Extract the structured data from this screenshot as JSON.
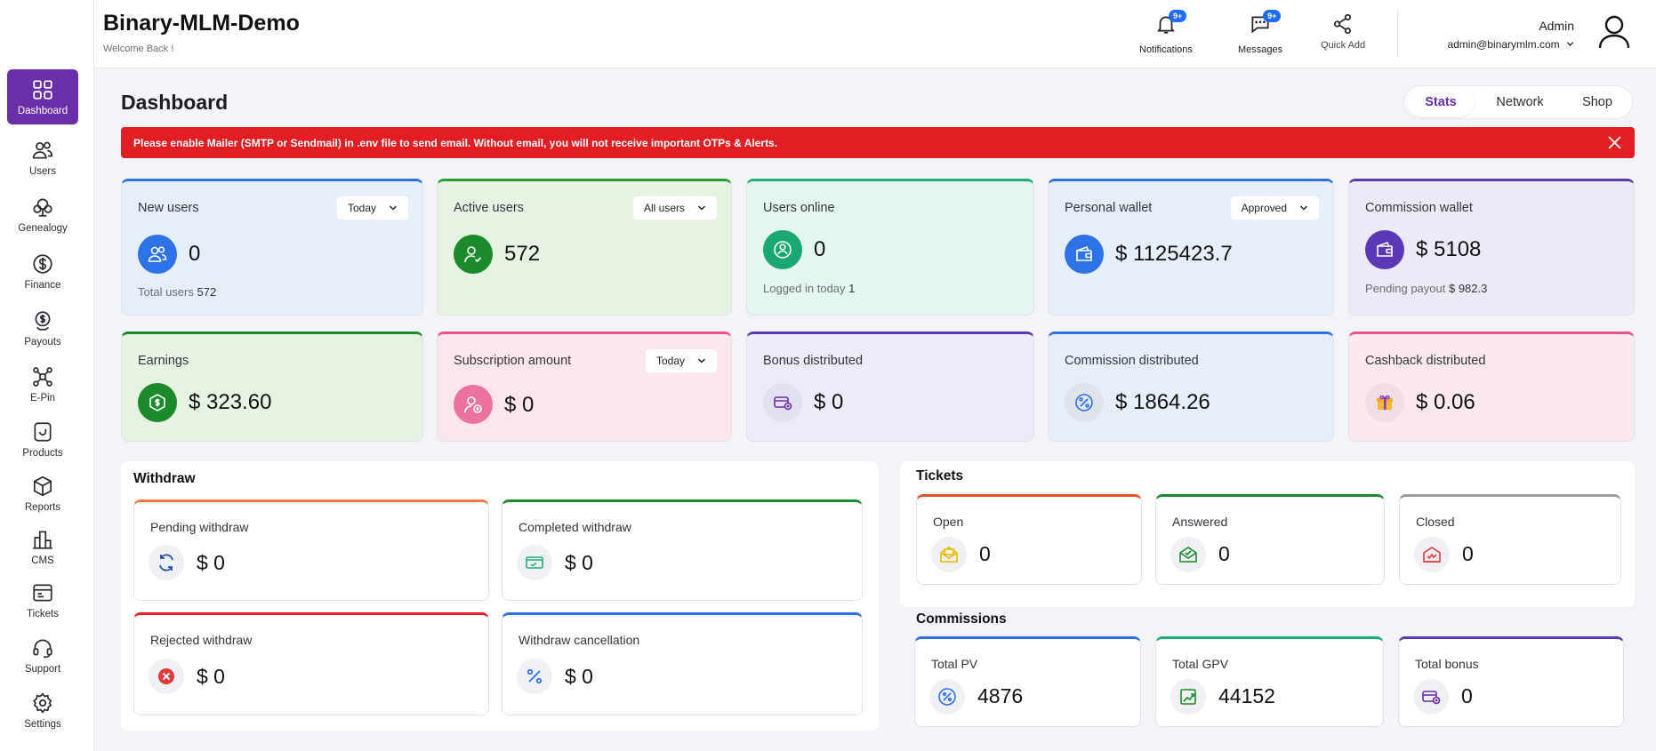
{
  "app": {
    "title": "Binary-MLM-Demo",
    "welcome": "Welcome Back !"
  },
  "sidebar": {
    "items": [
      {
        "label": "Dashboard",
        "icon": "dashboard-icon",
        "active": true
      },
      {
        "label": "Users",
        "icon": "users-icon"
      },
      {
        "label": "Genealogy",
        "icon": "genealogy-icon"
      },
      {
        "label": "Finance",
        "icon": "finance-icon"
      },
      {
        "label": "Payouts",
        "icon": "payouts-icon"
      },
      {
        "label": "E-Pin",
        "icon": "epin-icon"
      },
      {
        "label": "Products",
        "icon": "products-icon"
      },
      {
        "label": "Reports",
        "icon": "reports-icon"
      },
      {
        "label": "CMS",
        "icon": "cms-icon"
      },
      {
        "label": "Tickets",
        "icon": "tickets-icon"
      },
      {
        "label": "Support",
        "icon": "support-icon"
      },
      {
        "label": "Settings",
        "icon": "settings-icon"
      }
    ]
  },
  "header": {
    "notifications": {
      "label": "Notifications",
      "badge": "9+"
    },
    "messages": {
      "label": "Messages",
      "badge": "9+"
    },
    "quick_add": {
      "label": "Quick Add"
    },
    "admin_name": "Admin",
    "admin_email": "admin@binarymlm.com"
  },
  "page": {
    "title": "Dashboard",
    "tabs": [
      "Stats",
      "Network",
      "Shop"
    ],
    "active_tab": "Stats"
  },
  "alert": "Please enable Mailer (SMTP or Sendmail) in .env file to send email. Without email, you will not receive important OTPs & Alerts.",
  "stats": {
    "new_users": {
      "title": "New users",
      "filter": "Today",
      "value": "0",
      "sub_label": "Total users",
      "sub_value": "572"
    },
    "active_users": {
      "title": "Active users",
      "filter": "All users",
      "value": "572"
    },
    "users_online": {
      "title": "Users online",
      "value": "0",
      "sub_label": "Logged in today",
      "sub_value": "1"
    },
    "personal_wallet": {
      "title": "Personal wallet",
      "filter": "Approved",
      "value": "$ 1125423.7"
    },
    "commission_wallet": {
      "title": "Commission wallet",
      "value": "$ 5108",
      "sub_label": "Pending payout",
      "sub_value": "$ 982.3"
    },
    "earnings": {
      "title": "Earnings",
      "value": "$ 323.60"
    },
    "subscription_amount": {
      "title": "Subscription amount",
      "filter": "Today",
      "value": "$ 0"
    },
    "bonus_distributed": {
      "title": "Bonus distributed",
      "value": "$ 0"
    },
    "commission_distributed": {
      "title": "Commission distributed",
      "value": "$ 1864.26"
    },
    "cashback_distributed": {
      "title": "Cashback distributed",
      "value": "$ 0.06"
    }
  },
  "withdraw": {
    "title": "Withdraw",
    "pending": {
      "title": "Pending withdraw",
      "value": "$ 0"
    },
    "completed": {
      "title": "Completed withdraw",
      "value": "$ 0"
    },
    "rejected": {
      "title": "Rejected withdraw",
      "value": "$ 0"
    },
    "cancellation": {
      "title": "Withdraw cancellation",
      "value": "$ 0"
    }
  },
  "tickets": {
    "title": "Tickets",
    "open": {
      "title": "Open",
      "value": "0"
    },
    "answered": {
      "title": "Answered",
      "value": "0"
    },
    "closed": {
      "title": "Closed",
      "value": "0"
    }
  },
  "commissions": {
    "title": "Commissions",
    "total_pv": {
      "title": "Total PV",
      "value": "4876"
    },
    "total_gpv": {
      "title": "Total GPV",
      "value": "44152"
    },
    "total_bonus": {
      "title": "Total bonus",
      "value": "0"
    }
  },
  "colors": {
    "brand_purple": "#6a2fa8",
    "alert_red": "#e21e24",
    "blue": "#1f6bff",
    "green": "#1b8a2a",
    "pink": "#e8548a"
  }
}
